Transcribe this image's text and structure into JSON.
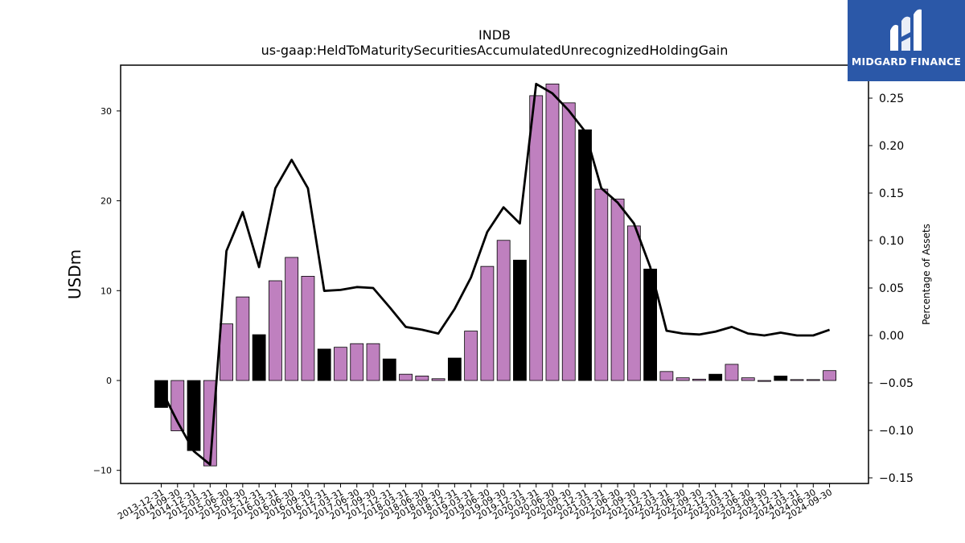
{
  "chart_data": {
    "type": "bar",
    "title": "INDB",
    "subtitle": "us-gaap:HeldToMaturitySecuritiesAccumulatedUnrecognizedHoldingGain",
    "ylabel": "USDm",
    "y2label": "Percentage of Assets",
    "ylim": [
      -11.5,
      35.0
    ],
    "y2lim": [
      -0.155,
      0.285
    ],
    "yticks": [
      "−10",
      "0",
      "10",
      "20",
      "30"
    ],
    "y2ticks": [
      "−0.15",
      "−0.10",
      "−0.05",
      "0.00",
      "0.05",
      "0.10",
      "0.15",
      "0.20",
      "0.25"
    ],
    "categories": [
      "2013-12-31",
      "2014-09-30",
      "2014-12-31",
      "2015-03-31",
      "2015-06-30",
      "2015-09-30",
      "2015-12-31",
      "2016-03-31",
      "2016-06-30",
      "2016-09-30",
      "2016-12-31",
      "2017-03-31",
      "2017-06-30",
      "2017-09-30",
      "2017-12-31",
      "2018-03-31",
      "2018-06-30",
      "2018-09-30",
      "2018-12-31",
      "2019-03-31",
      "2019-06-30",
      "2019-09-30",
      "2019-12-31",
      "2020-03-31",
      "2020-06-30",
      "2020-09-30",
      "2020-12-31",
      "2021-03-31",
      "2021-06-30",
      "2021-09-30",
      "2021-12-31",
      "2022-03-31",
      "2022-06-30",
      "2022-09-30",
      "2022-12-31",
      "2023-03-31",
      "2023-06-30",
      "2023-09-30",
      "2023-12-31",
      "2024-03-31",
      "2024-06-30",
      "2024-09-30"
    ],
    "series": [
      {
        "kind": "bar",
        "values": [
          -3.0,
          -5.6,
          -7.8,
          -9.5,
          6.3,
          9.3,
          5.1,
          11.1,
          13.7,
          11.6,
          3.5,
          3.7,
          4.1,
          4.1,
          2.4,
          0.7,
          0.5,
          0.2,
          2.5,
          5.5,
          12.7,
          15.6,
          13.4,
          31.7,
          33.0,
          30.9,
          27.9,
          21.3,
          20.2,
          17.2,
          12.4,
          1.0,
          0.3,
          0.15,
          0.7,
          1.8,
          0.3,
          -0.1,
          0.5,
          0.1,
          0.1,
          1.1
        ]
      },
      {
        "kind": "line",
        "axis": "right",
        "values": [
          -0.057,
          -0.091,
          -0.122,
          -0.136,
          0.089,
          0.13,
          0.072,
          0.155,
          0.185,
          0.155,
          0.047,
          0.048,
          0.051,
          0.05,
          0.03,
          0.009,
          0.006,
          0.002,
          0.028,
          0.061,
          0.109,
          0.135,
          0.118,
          0.265,
          0.255,
          0.237,
          0.215,
          0.155,
          0.14,
          0.118,
          0.072,
          0.005,
          0.002,
          0.001,
          0.004,
          0.009,
          0.002,
          0.0,
          0.003,
          0.0,
          0.0,
          0.006
        ]
      }
    ],
    "colors": {
      "bar_quarter": "#bf80bf",
      "bar_year_end": "#000000",
      "line": "#000000"
    }
  },
  "logo": {
    "text": "MIDGARD FINANCE",
    "color": "#2b58a8"
  }
}
